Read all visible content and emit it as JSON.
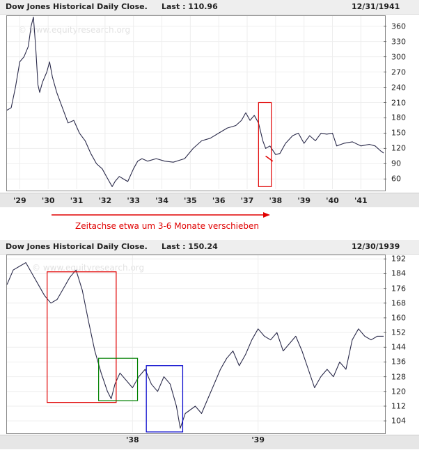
{
  "panels": [
    {
      "title": "Dow Jones Historical Daily Close.",
      "last": "Last : 110.96",
      "date": "12/31/1941",
      "watermark": "© www.equityresearch.org",
      "chart_data": {
        "type": "line",
        "y_ticks": [
          360,
          330,
          300,
          270,
          240,
          210,
          180,
          150,
          120,
          90,
          60
        ],
        "x_ticks": [
          "'29",
          "'30",
          "'31",
          "'32",
          "'33",
          "'34",
          "'35",
          "'36",
          "'37",
          "'38",
          "'39",
          "'40",
          "'41"
        ],
        "ylim": [
          40,
          380
        ],
        "xlim": [
          1928.75,
          1942.0
        ],
        "series": [
          {
            "color": "#2a2a4a",
            "points": [
              [
                1928.75,
                195
              ],
              [
                1928.9,
                200
              ],
              [
                1929.05,
                240
              ],
              [
                1929.2,
                290
              ],
              [
                1929.35,
                300
              ],
              [
                1929.5,
                320
              ],
              [
                1929.6,
                360
              ],
              [
                1929.68,
                378
              ],
              [
                1929.76,
                320
              ],
              [
                1929.84,
                245
              ],
              [
                1929.9,
                230
              ],
              [
                1930.0,
                250
              ],
              [
                1930.15,
                270
              ],
              [
                1930.25,
                290
              ],
              [
                1930.35,
                260
              ],
              [
                1930.5,
                230
              ],
              [
                1930.7,
                200
              ],
              [
                1930.9,
                170
              ],
              [
                1931.1,
                175
              ],
              [
                1931.3,
                150
              ],
              [
                1931.5,
                135
              ],
              [
                1931.7,
                110
              ],
              [
                1931.9,
                90
              ],
              [
                1932.1,
                80
              ],
              [
                1932.3,
                60
              ],
              [
                1932.45,
                45
              ],
              [
                1932.55,
                55
              ],
              [
                1932.7,
                65
              ],
              [
                1932.85,
                60
              ],
              [
                1933.0,
                55
              ],
              [
                1933.2,
                80
              ],
              [
                1933.35,
                95
              ],
              [
                1933.5,
                100
              ],
              [
                1933.7,
                95
              ],
              [
                1934.0,
                100
              ],
              [
                1934.3,
                95
              ],
              [
                1934.6,
                93
              ],
              [
                1935.0,
                100
              ],
              [
                1935.3,
                120
              ],
              [
                1935.6,
                135
              ],
              [
                1935.9,
                140
              ],
              [
                1936.2,
                150
              ],
              [
                1936.5,
                160
              ],
              [
                1936.8,
                165
              ],
              [
                1937.0,
                175
              ],
              [
                1937.15,
                190
              ],
              [
                1937.3,
                175
              ],
              [
                1937.45,
                185
              ],
              [
                1937.6,
                170
              ],
              [
                1937.75,
                135
              ],
              [
                1937.85,
                120
              ],
              [
                1938.0,
                125
              ],
              [
                1938.2,
                108
              ],
              [
                1938.35,
                110
              ],
              [
                1938.55,
                130
              ],
              [
                1938.8,
                145
              ],
              [
                1939.0,
                150
              ],
              [
                1939.2,
                130
              ],
              [
                1939.4,
                145
              ],
              [
                1939.6,
                135
              ],
              [
                1939.8,
                150
              ],
              [
                1940.0,
                148
              ],
              [
                1940.2,
                150
              ],
              [
                1940.35,
                125
              ],
              [
                1940.6,
                130
              ],
              [
                1940.9,
                133
              ],
              [
                1941.2,
                125
              ],
              [
                1941.5,
                128
              ],
              [
                1941.7,
                125
              ],
              [
                1941.9,
                115
              ],
              [
                1942.0,
                111
              ]
            ]
          }
        ]
      }
    },
    {
      "title": "Dow Jones Historical Daily Close.",
      "last": "Last : 150.24",
      "date": "12/30/1939",
      "watermark": "© www.equityresearch.org",
      "chart_data": {
        "type": "line",
        "y_ticks": [
          192,
          184,
          176,
          168,
          160,
          152,
          144,
          136,
          128,
          120,
          112,
          104
        ],
        "x_ticks": [
          "'38",
          "'39"
        ],
        "ylim": [
          98,
          194
        ],
        "xlim": [
          1937.0,
          1940.0
        ],
        "series": [
          {
            "color": "#2a2a4a",
            "points": [
              [
                1937.0,
                178
              ],
              [
                1937.05,
                186
              ],
              [
                1937.1,
                188
              ],
              [
                1937.15,
                190
              ],
              [
                1937.2,
                184
              ],
              [
                1937.25,
                178
              ],
              [
                1937.3,
                172
              ],
              [
                1937.35,
                168
              ],
              [
                1937.4,
                170
              ],
              [
                1937.45,
                176
              ],
              [
                1937.5,
                182
              ],
              [
                1937.55,
                186
              ],
              [
                1937.6,
                175
              ],
              [
                1937.65,
                158
              ],
              [
                1937.7,
                142
              ],
              [
                1937.75,
                130
              ],
              [
                1937.8,
                120
              ],
              [
                1937.83,
                116
              ],
              [
                1937.86,
                124
              ],
              [
                1937.9,
                130
              ],
              [
                1937.95,
                126
              ],
              [
                1938.0,
                122
              ],
              [
                1938.05,
                128
              ],
              [
                1938.1,
                132
              ],
              [
                1938.15,
                124
              ],
              [
                1938.2,
                120
              ],
              [
                1938.25,
                128
              ],
              [
                1938.3,
                124
              ],
              [
                1938.35,
                112
              ],
              [
                1938.38,
                100
              ],
              [
                1938.42,
                108
              ],
              [
                1938.5,
                112
              ],
              [
                1938.55,
                108
              ],
              [
                1938.6,
                116
              ],
              [
                1938.65,
                124
              ],
              [
                1938.7,
                132
              ],
              [
                1938.75,
                138
              ],
              [
                1938.8,
                142
              ],
              [
                1938.85,
                134
              ],
              [
                1938.9,
                140
              ],
              [
                1938.95,
                148
              ],
              [
                1939.0,
                154
              ],
              [
                1939.05,
                150
              ],
              [
                1939.1,
                148
              ],
              [
                1939.15,
                152
              ],
              [
                1939.2,
                142
              ],
              [
                1939.25,
                146
              ],
              [
                1939.3,
                150
              ],
              [
                1939.35,
                142
              ],
              [
                1939.4,
                132
              ],
              [
                1939.45,
                122
              ],
              [
                1939.5,
                128
              ],
              [
                1939.55,
                132
              ],
              [
                1939.6,
                128
              ],
              [
                1939.65,
                136
              ],
              [
                1939.7,
                132
              ],
              [
                1939.75,
                148
              ],
              [
                1939.8,
                154
              ],
              [
                1939.85,
                150
              ],
              [
                1939.9,
                148
              ],
              [
                1939.95,
                150
              ],
              [
                1940.0,
                150
              ]
            ]
          }
        ]
      }
    }
  ],
  "top_annotations": {
    "note": "Zeitachse etwa um 3-6 Monate verschieben",
    "note_color": "#e00000",
    "boxes": [
      {
        "color": "#e00000",
        "x": [
          1937.6,
          1938.05
        ],
        "y": [
          45,
          210
        ]
      }
    ],
    "red_mark": {
      "x": [
        1937.85,
        1938.1
      ],
      "y": [
        105,
        95
      ]
    }
  },
  "bottom_annotations": {
    "boxes": [
      {
        "color": "#e00000",
        "x": [
          1937.32,
          1937.87
        ],
        "y": [
          114,
          185
        ]
      },
      {
        "color": "#008000",
        "x": [
          1937.73,
          1938.04
        ],
        "y": [
          115,
          138
        ]
      },
      {
        "color": "#0000cc",
        "x": [
          1938.11,
          1938.4
        ],
        "y": [
          98,
          134
        ]
      }
    ]
  }
}
